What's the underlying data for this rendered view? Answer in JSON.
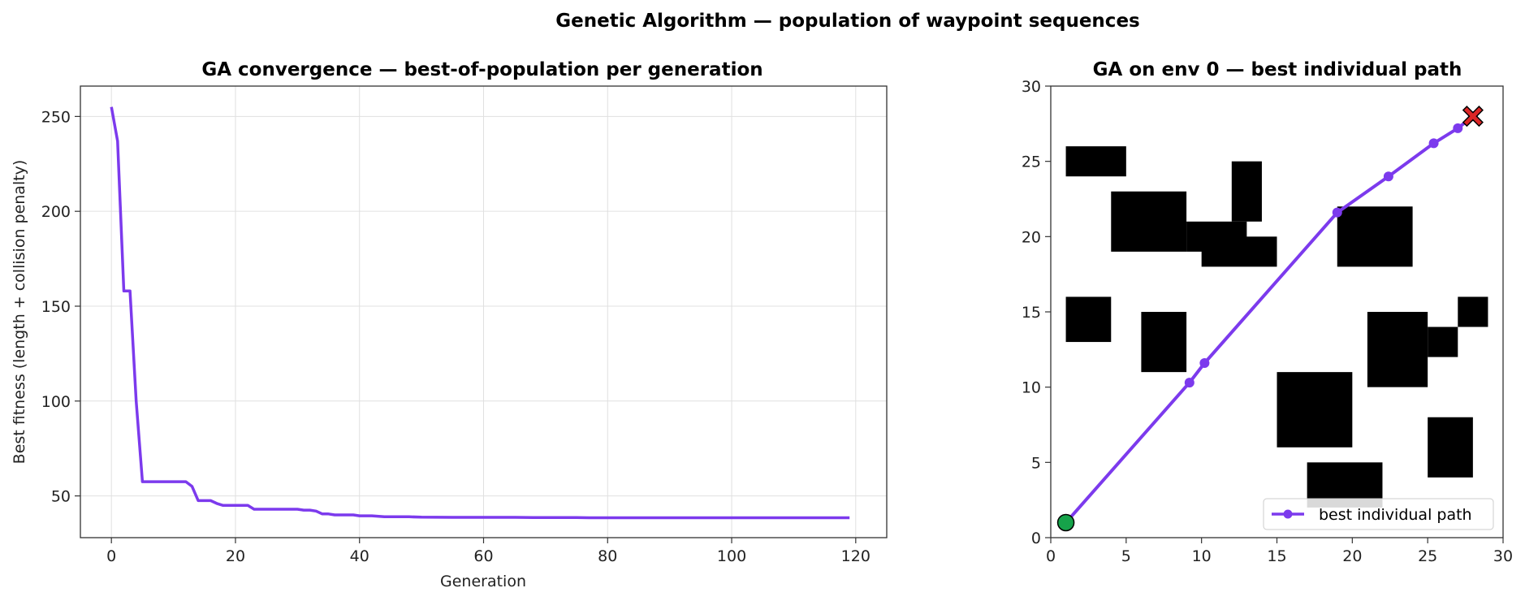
{
  "figure_title": "Genetic Algorithm — population of waypoint sequences",
  "colors": {
    "path": "#7c3aed",
    "obstacle": "#000000",
    "start": "#16a34a",
    "goal": "#dc2626",
    "grid": "#e0e0e0",
    "axes": "#333333"
  },
  "chart_data": [
    {
      "type": "line",
      "title": "GA convergence — best-of-population per generation",
      "xlabel": "Generation",
      "ylabel": "Best fitness  (length + collision penalty)",
      "xlim": [
        -5,
        125
      ],
      "ylim": [
        28,
        266
      ],
      "xticks": [
        0,
        20,
        40,
        60,
        80,
        100,
        120
      ],
      "yticks": [
        50,
        100,
        150,
        200,
        250
      ],
      "grid": true,
      "series": [
        {
          "x": [
            0,
            1,
            2,
            3,
            4,
            5,
            6,
            7,
            8,
            9,
            10,
            11,
            12,
            13,
            14,
            15,
            16,
            17,
            18,
            19,
            20,
            21,
            22,
            23,
            24,
            25,
            26,
            27,
            28,
            29,
            30,
            31,
            32,
            33,
            34,
            35,
            36,
            37,
            38,
            39,
            40,
            42,
            44,
            46,
            48,
            50,
            55,
            60,
            65,
            68,
            70,
            75,
            77,
            80,
            90,
            100,
            110,
            119
          ],
          "values": [
            255,
            237,
            158,
            158,
            100,
            57.5,
            57.5,
            57.5,
            57.5,
            57.5,
            57.5,
            57.5,
            57.5,
            55,
            47.5,
            47.5,
            47.5,
            46,
            45,
            45,
            45,
            45,
            45,
            43,
            43,
            43,
            43,
            43,
            43,
            43,
            43,
            42.5,
            42.5,
            42,
            40.5,
            40.5,
            40,
            40,
            40,
            40,
            39.5,
            39.5,
            39,
            39,
            39,
            38.8,
            38.7,
            38.7,
            38.7,
            38.6,
            38.6,
            38.6,
            38.5,
            38.5,
            38.5,
            38.5,
            38.5,
            38.5
          ]
        }
      ]
    },
    {
      "type": "scatter",
      "title": "GA on env 0 — best individual path",
      "xlim": [
        0,
        30
      ],
      "ylim": [
        0,
        30
      ],
      "xticks": [
        0,
        5,
        10,
        15,
        20,
        25,
        30
      ],
      "yticks": [
        0,
        5,
        10,
        15,
        20,
        25,
        30
      ],
      "grid": false,
      "legend_position": "lower-right",
      "obstacles": [
        {
          "x0": 1,
          "y0": 24,
          "x1": 5,
          "y1": 26
        },
        {
          "x0": 4,
          "y0": 19,
          "x1": 9,
          "y1": 23
        },
        {
          "x0": 9,
          "y0": 19,
          "x1": 13,
          "y1": 21
        },
        {
          "x0": 12,
          "y0": 21,
          "x1": 14,
          "y1": 25
        },
        {
          "x0": 10,
          "y0": 18,
          "x1": 15,
          "y1": 20
        },
        {
          "x0": 19,
          "y0": 18,
          "x1": 24,
          "y1": 22
        },
        {
          "x0": 1,
          "y0": 13,
          "x1": 4,
          "y1": 16
        },
        {
          "x0": 6,
          "y0": 11,
          "x1": 9,
          "y1": 15
        },
        {
          "x0": 21,
          "y0": 10,
          "x1": 25,
          "y1": 15
        },
        {
          "x0": 25,
          "y0": 12,
          "x1": 27,
          "y1": 14
        },
        {
          "x0": 27,
          "y0": 14,
          "x1": 29,
          "y1": 16
        },
        {
          "x0": 15,
          "y0": 6,
          "x1": 20,
          "y1": 11
        },
        {
          "x0": 25,
          "y0": 4,
          "x1": 28,
          "y1": 8
        },
        {
          "x0": 17,
          "y0": 2,
          "x1": 22,
          "y1": 5
        }
      ],
      "series": [
        {
          "name": "best individual path",
          "x": [
            1,
            9.2,
            10.2,
            19,
            22.4,
            25.4,
            27,
            28
          ],
          "y": [
            1,
            10.3,
            11.6,
            21.6,
            24,
            26.2,
            27.2,
            28
          ]
        }
      ],
      "start": {
        "x": 1,
        "y": 1
      },
      "goal": {
        "x": 28,
        "y": 28
      }
    }
  ]
}
